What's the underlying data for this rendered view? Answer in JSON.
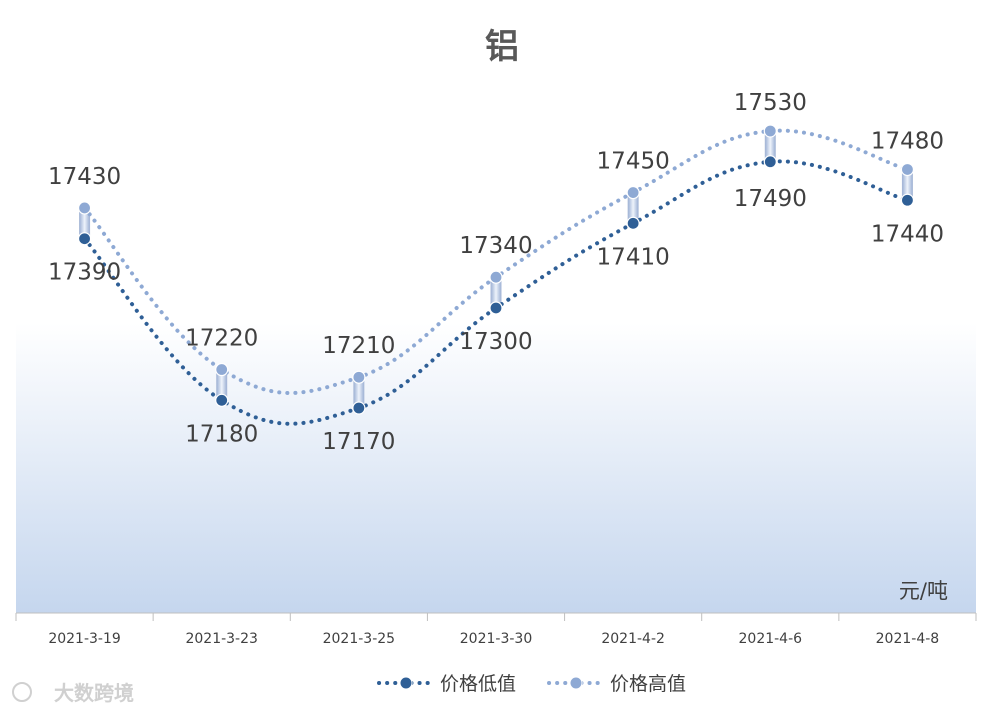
{
  "chart_data": {
    "type": "line",
    "title": "铝",
    "unit": "元/吨",
    "categories": [
      "2021-3-19",
      "2021-3-23",
      "2021-3-25",
      "2021-3-30",
      "2021-4-2",
      "2021-4-6",
      "2021-4-8"
    ],
    "series": [
      {
        "name": "价格低值",
        "values": [
          17390,
          17180,
          17170,
          17300,
          17410,
          17490,
          17440
        ],
        "color": "#2f5f96"
      },
      {
        "name": "价格高值",
        "values": [
          17430,
          17220,
          17210,
          17340,
          17450,
          17530,
          17480
        ],
        "color": "#8ea9d4"
      }
    ],
    "legend_position": "bottom",
    "grid": false
  },
  "watermark": {
    "text": "大数跨境"
  }
}
